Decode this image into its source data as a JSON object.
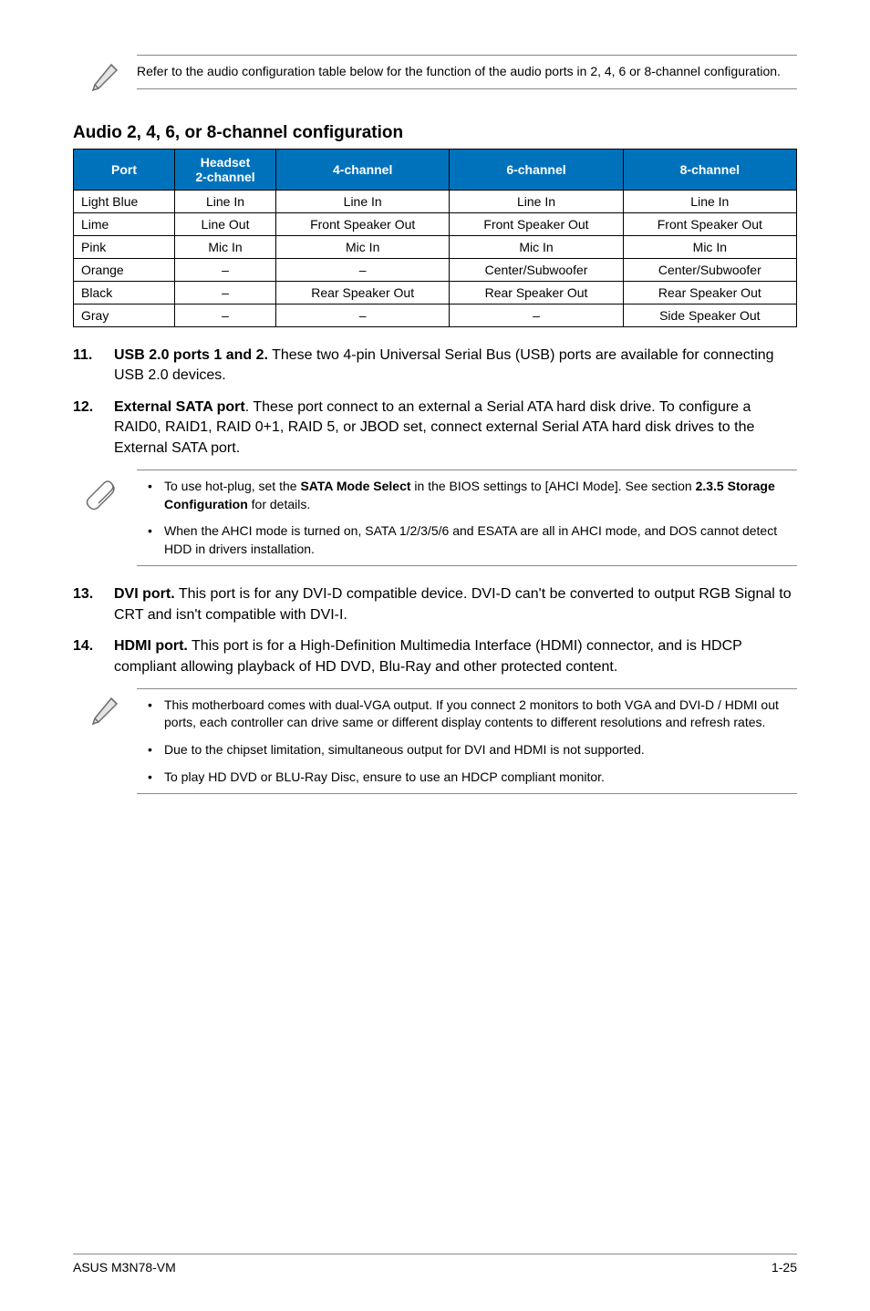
{
  "noteTop": "Refer to the audio configuration table below for the function of the audio ports in 2, 4, 6 or 8-channel configuration.",
  "sectionHeading": "Audio 2, 4, 6, or 8-channel configuration",
  "audioTable": {
    "headers": {
      "port": "Port",
      "headset": "Headset\n2-channel",
      "ch4": "4-channel",
      "ch6": "6-channel",
      "ch8": "8-channel"
    },
    "rows": [
      {
        "port": "Light Blue",
        "c2": "Line In",
        "c4": "Line In",
        "c6": "Line In",
        "c8": "Line In"
      },
      {
        "port": "Lime",
        "c2": "Line Out",
        "c4": "Front Speaker Out",
        "c6": "Front Speaker Out",
        "c8": "Front Speaker Out"
      },
      {
        "port": "Pink",
        "c2": "Mic In",
        "c4": "Mic In",
        "c6": "Mic In",
        "c8": "Mic In"
      },
      {
        "port": "Orange",
        "c2": "–",
        "c4": "–",
        "c6": "Center/Subwoofer",
        "c8": "Center/Subwoofer"
      },
      {
        "port": "Black",
        "c2": "–",
        "c4": "Rear Speaker Out",
        "c6": "Rear Speaker Out",
        "c8": "Rear Speaker Out"
      },
      {
        "port": "Gray",
        "c2": "–",
        "c4": "–",
        "c6": "–",
        "c8": "Side Speaker Out"
      }
    ],
    "colWidths": [
      "14%",
      "14%",
      "24%",
      "24%",
      "24%"
    ],
    "headerBg": "#0072bc",
    "headerColor": "#ffffff",
    "borderColor": "#000000"
  },
  "listItems": [
    {
      "num": "11.",
      "boldLead": "USB 2.0 ports 1 and 2.",
      "rest": " These two 4-pin Universal Serial Bus (USB) ports are available for connecting USB 2.0 devices."
    },
    {
      "num": "12.",
      "boldLead": "External SATA port",
      "rest": ". These port connect to an external a Serial ATA hard disk drive. To configure a RAID0, RAID1, RAID 0+1, RAID 5, or JBOD set, connect external Serial ATA hard disk drives to the External SATA port."
    }
  ],
  "tipNote": {
    "items": [
      {
        "pre": "To use hot-plug, set the ",
        "bold1": "SATA Mode Select",
        "mid": " in the BIOS settings to [AHCI Mode]. See section ",
        "bold2": "2.3.5 Storage Configuration",
        "post": " for details."
      },
      {
        "text": "When the AHCI mode is turned on, SATA 1/2/3/5/6 and ESATA are all in AHCI mode, and DOS cannot detect HDD in drivers installation."
      }
    ]
  },
  "listItems2": [
    {
      "num": "13.",
      "boldLead": "DVI port.",
      "rest": " This port is for any DVI-D compatible device. DVI-D can't be converted to output RGB  Signal to CRT and isn't compatible with DVI-I."
    },
    {
      "num": "14.",
      "boldLead": "HDMI port.",
      "rest": " This port is for a High-Definition Multimedia Interface (HDMI) connector, and is HDCP compliant allowing playback of HD DVD, Blu-Ray and other protected content."
    }
  ],
  "noteBottom": {
    "items": [
      "This motherboard comes with dual-VGA output. If you connect 2 monitors to both VGA and DVI-D / HDMI out ports, each controller can drive same or different display contents to different resolutions and refresh rates.",
      "Due to the chipset limitation, simultaneous output for DVI and HDMI is not supported.",
      "To play HD DVD or BLU-Ray Disc, ensure to use an HDCP compliant monitor."
    ]
  },
  "footer": {
    "left": "ASUS M3N78-VM",
    "right": "1-25"
  },
  "icons": {
    "pencil": {
      "stroke": "#6c6c6c",
      "fill": "#d9d9d9"
    },
    "paperclip": {
      "stroke": "#6c6c6c"
    }
  }
}
